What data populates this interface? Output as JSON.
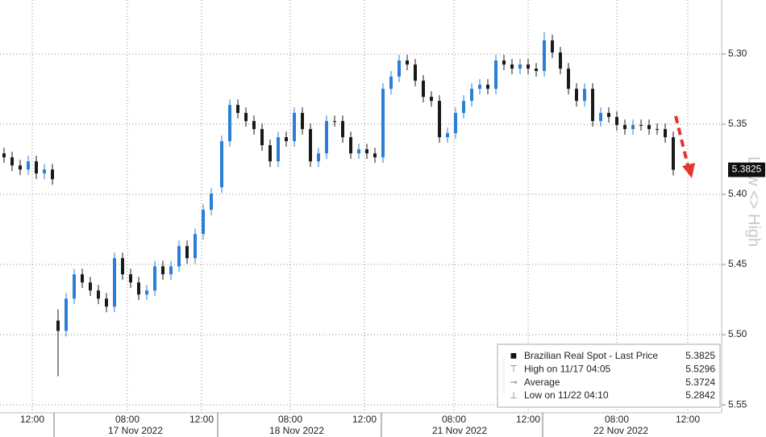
{
  "chart_data": {
    "type": "candlestick",
    "title_axis_right": "Low <> High",
    "up_color": "#2b7fd6",
    "down_color": "#1a1a1a",
    "x": [
      0.5,
      1.5,
      2.5,
      3.5,
      4.5,
      5.5,
      6.5,
      7.2,
      8.2,
      9.2,
      10.2,
      11.2,
      12.2,
      13.2,
      14.2,
      15.2,
      16.2,
      17.2,
      18.2,
      19.2,
      20.2,
      21.2,
      22.2,
      23.2,
      24.2,
      25.2,
      26.2,
      27.5,
      28.5,
      29.5,
      30.5,
      31.5,
      32.5,
      33.5,
      34.5,
      35.5,
      36.5,
      37.5,
      38.5,
      39.5,
      40.5,
      41.5,
      42.5,
      43.5,
      44.5,
      45.5,
      46.5,
      47.5,
      48.5,
      49.5,
      50.5,
      51.5,
      52.5,
      53.5,
      54.5,
      55.5,
      56.5,
      57.5,
      58.5,
      59.5,
      60.5,
      61.5,
      62.5,
      63.5,
      64.5,
      65.5,
      66.5,
      67.5,
      68.5,
      69.5,
      70.5,
      71.5,
      72.5,
      73.5,
      74.5,
      75.5,
      76.5,
      77.5,
      78.5,
      79.5,
      80.5,
      81.5,
      82.5,
      83.5
    ],
    "open": [
      5.3708,
      5.3736,
      5.3794,
      5.3823,
      5.3765,
      5.3851,
      5.3823,
      5.49,
      5.4973,
      5.4743,
      5.457,
      5.4628,
      5.4685,
      5.4743,
      5.48,
      5.4455,
      5.457,
      5.4628,
      5.4714,
      5.4685,
      5.4513,
      5.457,
      5.4513,
      5.4369,
      5.4455,
      5.4283,
      5.411,
      5.395,
      5.3621,
      5.3363,
      5.342,
      5.3478,
      5.3535,
      5.365,
      5.3765,
      5.3593,
      5.3621,
      5.342,
      5.3535,
      5.3765,
      5.3708,
      5.3478,
      5.3478,
      5.3593,
      5.3708,
      5.3679,
      5.3708,
      5.3736,
      5.3248,
      5.3161,
      5.3046,
      5.3075,
      5.319,
      5.3305,
      5.3334,
      5.3593,
      5.3564,
      5.342,
      5.3334,
      5.3248,
      5.3219,
      5.3248,
      5.3046,
      5.3075,
      5.3104,
      5.3075,
      5.3104,
      5.3121,
      5.2903,
      5.2989,
      5.3104,
      5.3248,
      5.3334,
      5.3248,
      5.3478,
      5.342,
      5.3449,
      5.3506,
      5.3535,
      5.3506,
      5.3506,
      5.3535,
      5.3535,
      5.3593
    ],
    "high": [
      5.3776,
      5.3834,
      5.3863,
      5.3863,
      5.3891,
      5.3891,
      5.3932,
      5.5296,
      5.5013,
      5.4783,
      5.4668,
      5.4725,
      5.4783,
      5.484,
      5.484,
      5.461,
      5.4668,
      5.4754,
      5.4754,
      5.4725,
      5.461,
      5.461,
      5.4553,
      5.4495,
      5.4495,
      5.4323,
      5.415,
      5.399,
      5.3661,
      5.346,
      5.3518,
      5.3575,
      5.369,
      5.3805,
      5.3805,
      5.3661,
      5.3661,
      5.3575,
      5.3805,
      5.3805,
      5.3748,
      5.3518,
      5.3633,
      5.3748,
      5.3748,
      5.3748,
      5.3776,
      5.3776,
      5.3288,
      5.3201,
      5.3115,
      5.323,
      5.3345,
      5.3374,
      5.3633,
      5.3633,
      5.3604,
      5.346,
      5.3374,
      5.3288,
      5.3288,
      5.3288,
      5.3115,
      5.3144,
      5.3144,
      5.3144,
      5.3161,
      5.3161,
      5.3029,
      5.3144,
      5.3288,
      5.3374,
      5.3374,
      5.3518,
      5.3518,
      5.3489,
      5.3546,
      5.3575,
      5.3575,
      5.3546,
      5.3575,
      5.3575,
      5.3633,
      5.3865
    ],
    "low": [
      5.3668,
      5.3696,
      5.3754,
      5.3725,
      5.3725,
      5.3783,
      5.3783,
      5.482,
      5.4703,
      5.453,
      5.453,
      5.4588,
      5.4645,
      5.4703,
      5.4415,
      5.4415,
      5.453,
      5.4588,
      5.4645,
      5.4473,
      5.4473,
      5.4473,
      5.4329,
      5.4329,
      5.4243,
      5.407,
      5.3955,
      5.3581,
      5.3323,
      5.3323,
      5.338,
      5.3438,
      5.3495,
      5.361,
      5.3553,
      5.3553,
      5.338,
      5.338,
      5.3495,
      5.3668,
      5.3438,
      5.3438,
      5.3438,
      5.3553,
      5.3639,
      5.3639,
      5.3668,
      5.3208,
      5.3121,
      5.3006,
      5.3006,
      5.3035,
      5.315,
      5.3265,
      5.3294,
      5.3524,
      5.338,
      5.3294,
      5.3208,
      5.3179,
      5.3179,
      5.3006,
      5.3006,
      5.3035,
      5.3035,
      5.3035,
      5.3064,
      5.2842,
      5.2863,
      5.2949,
      5.3064,
      5.3208,
      5.3208,
      5.3208,
      5.338,
      5.338,
      5.3409,
      5.3466,
      5.3466,
      5.3466,
      5.3466,
      5.3495,
      5.3495,
      5.3553
    ],
    "close": [
      5.3736,
      5.3794,
      5.3823,
      5.3765,
      5.3851,
      5.3823,
      5.3892,
      5.4973,
      5.4743,
      5.457,
      5.4628,
      5.4685,
      5.4743,
      5.48,
      5.4455,
      5.457,
      5.4628,
      5.4714,
      5.4685,
      5.4513,
      5.457,
      5.4513,
      5.4369,
      5.4455,
      5.4283,
      5.411,
      5.3995,
      5.3621,
      5.3363,
      5.342,
      5.3478,
      5.3535,
      5.365,
      5.3765,
      5.3593,
      5.3621,
      5.342,
      5.3535,
      5.3765,
      5.3708,
      5.3478,
      5.3478,
      5.3593,
      5.3708,
      5.3679,
      5.3708,
      5.3736,
      5.3248,
      5.3161,
      5.3046,
      5.3075,
      5.319,
      5.3305,
      5.3334,
      5.3593,
      5.3564,
      5.342,
      5.3334,
      5.3248,
      5.3219,
      5.3248,
      5.3046,
      5.3075,
      5.3104,
      5.3075,
      5.3104,
      5.3121,
      5.2903,
      5.2989,
      5.3104,
      5.3248,
      5.3334,
      5.3248,
      5.3478,
      5.342,
      5.3449,
      5.3506,
      5.3535,
      5.3506,
      5.3506,
      5.3535,
      5.3535,
      5.3593,
      5.3825
    ],
    "xlim": [
      0,
      89.5
    ],
    "xticks": [
      {
        "value": 4.0,
        "label": "12:00"
      },
      {
        "value": 15.8,
        "label": "08:00"
      },
      {
        "value": 25.0,
        "label": "12:00"
      },
      {
        "value": 36.0,
        "label": "08:00"
      },
      {
        "value": 45.2,
        "label": "12:00"
      },
      {
        "value": 56.3,
        "label": "08:00"
      },
      {
        "value": 65.5,
        "label": "12:00"
      },
      {
        "value": 76.5,
        "label": "08:00"
      },
      {
        "value": 85.3,
        "label": "12:00"
      }
    ],
    "day_labels": [
      {
        "value": 16.8,
        "label": "17 Nov 2022"
      },
      {
        "value": 36.8,
        "label": "18 Nov 2022"
      },
      {
        "value": 57.0,
        "label": "21 Nov 2022"
      },
      {
        "value": 77.0,
        "label": "22 Nov 2022"
      }
    ],
    "day_breaks": [
      6.7,
      27.0,
      47.3,
      67.3
    ],
    "ylim": [
      5.5557,
      5.2615
    ],
    "yticks": [
      {
        "value": 5.3,
        "label": "5.30"
      },
      5.35,
      {
        "value": 5.4,
        "label": "5.40"
      },
      5.45,
      {
        "value": 5.5,
        "label": "5.50"
      },
      5.55
    ],
    "grid": true,
    "last_price": 5.3825,
    "legend": [
      {
        "label": "Brazilian Real Spot - Last Price",
        "value": 5.3825
      },
      {
        "label": "High on 11/17 04:05",
        "value": 5.5296
      },
      {
        "label": "Average",
        "value": 5.3724
      },
      {
        "label": "Low on 11/22 04:10",
        "value": 5.2842
      }
    ]
  }
}
